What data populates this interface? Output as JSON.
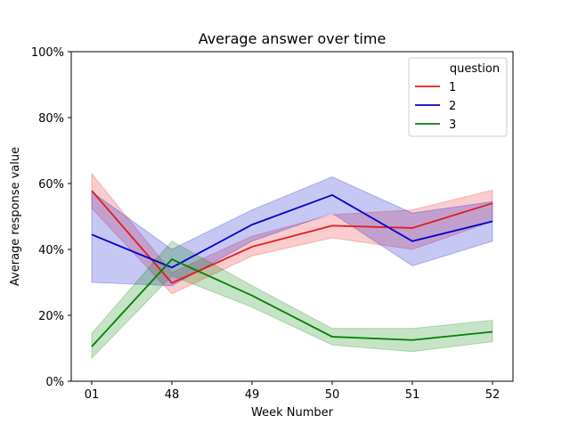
{
  "chart_data": {
    "type": "line",
    "title": "Average answer over time",
    "xlabel": "Week Number",
    "ylabel": "Average response value",
    "categories": [
      "01",
      "48",
      "49",
      "50",
      "51",
      "52"
    ],
    "ylim": [
      0,
      100
    ],
    "yticks": [
      "0%",
      "20%",
      "40%",
      "60%",
      "80%",
      "100%"
    ],
    "ytick_values": [
      0,
      20,
      40,
      60,
      80,
      100
    ],
    "grid": false,
    "legend": {
      "title": "question",
      "placement": "top-right"
    },
    "series": [
      {
        "name": "1",
        "color": "#e41a1c",
        "values": [
          57.8,
          29.8,
          40.8,
          47.2,
          46.5,
          54.0
        ],
        "ci_low": [
          52.5,
          26.5,
          38.0,
          43.5,
          40.0,
          48.5
        ],
        "ci_high": [
          63.0,
          33.0,
          44.0,
          50.5,
          52.0,
          58.0
        ]
      },
      {
        "name": "2",
        "color": "#0000cc",
        "values": [
          44.5,
          34.5,
          47.5,
          56.5,
          42.5,
          48.5
        ],
        "ci_low": [
          30.0,
          29.0,
          42.5,
          51.0,
          35.0,
          42.5
        ],
        "ci_high": [
          57.5,
          40.0,
          52.0,
          62.0,
          51.0,
          54.5
        ]
      },
      {
        "name": "3",
        "color": "#008000",
        "values": [
          10.5,
          37.0,
          26.0,
          13.5,
          12.5,
          15.0
        ],
        "ci_low": [
          7.0,
          32.0,
          22.5,
          11.0,
          9.0,
          12.0
        ],
        "ci_high": [
          14.5,
          42.5,
          29.0,
          16.0,
          16.0,
          18.5
        ]
      }
    ]
  }
}
